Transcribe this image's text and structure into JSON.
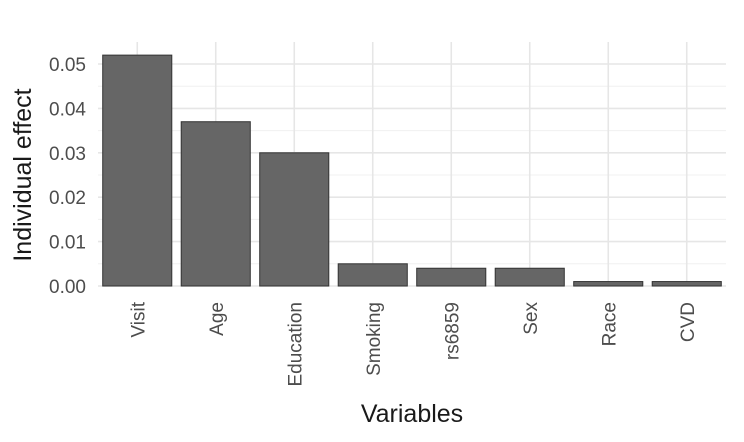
{
  "chart_data": {
    "type": "bar",
    "title": "",
    "xlabel": "Variables",
    "ylabel": "Individual effect",
    "categories": [
      "Visit",
      "Age",
      "Education",
      "Smoking",
      "rs6859",
      "Sex",
      "Race",
      "CVD"
    ],
    "values": [
      0.052,
      0.037,
      0.03,
      0.005,
      0.004,
      0.004,
      0.001,
      0.001
    ],
    "ylim": [
      0,
      0.055
    ],
    "yticks": [
      "0.00",
      "0.01",
      "0.02",
      "0.03",
      "0.04",
      "0.05"
    ],
    "grid": true,
    "legend": "none",
    "bar_color": "#666666"
  }
}
